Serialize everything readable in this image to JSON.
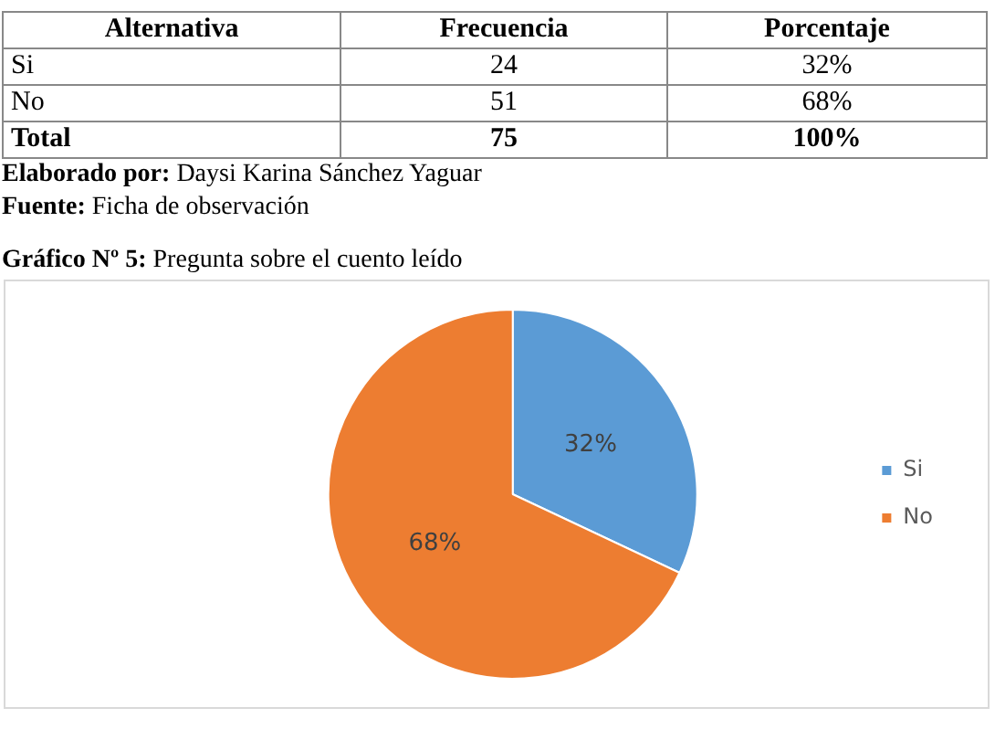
{
  "chart_data": {
    "type": "pie",
    "title": "Gráfico Nº 5: Pregunta sobre el cuento leído",
    "categories": [
      "Si",
      "No"
    ],
    "values": [
      32,
      68
    ],
    "colors": [
      "#5b9bd5",
      "#ed7d31"
    ],
    "value_labels": [
      "32%",
      "68%"
    ],
    "legend": "right",
    "annotations": [
      "Alternativa",
      "Frecuencia",
      "Porcentaje",
      "Si",
      "24",
      "32%",
      "No",
      "51",
      "68%",
      "Total",
      "75",
      "100%",
      "Elaborado por: Daysi Karina Sánchez Yaguar",
      "Fuente: Ficha de observación"
    ]
  }
}
